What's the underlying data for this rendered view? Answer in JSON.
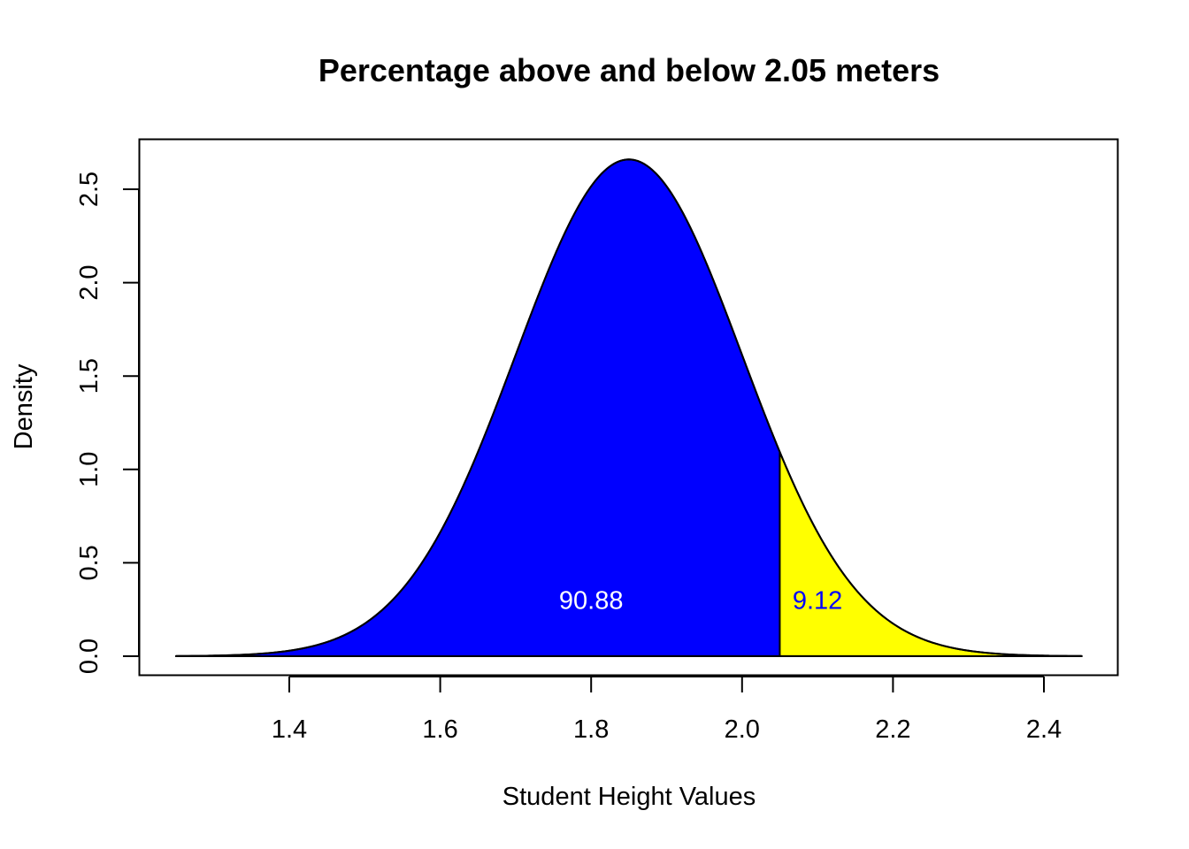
{
  "chart_data": {
    "type": "area",
    "title": "Percentage above and below 2.05 meters",
    "xlabel": "Student Height Values",
    "ylabel": "Density",
    "xlim": [
      1.25,
      2.45
    ],
    "ylim": [
      0,
      2.66
    ],
    "x_ticks": [
      "1.4",
      "1.6",
      "1.8",
      "2.0",
      "2.2",
      "2.4"
    ],
    "y_ticks": [
      "0.0",
      "0.5",
      "1.0",
      "1.5",
      "2.0",
      "2.5"
    ],
    "distribution": {
      "family": "normal",
      "mean": 1.85,
      "sd": 0.15
    },
    "cutoff": 2.05,
    "regions": [
      {
        "name": "below",
        "from": 1.25,
        "to": 2.05,
        "fill": "#0000ff",
        "label": "90.88",
        "label_color": "#ffffff",
        "label_x": 1.8,
        "label_y": 0.3
      },
      {
        "name": "above",
        "from": 2.05,
        "to": 2.45,
        "fill": "#ffff00",
        "label": "9.12",
        "label_color": "#0000ff",
        "label_x": 2.1,
        "label_y": 0.3
      }
    ],
    "grid": false,
    "legend": "none"
  }
}
